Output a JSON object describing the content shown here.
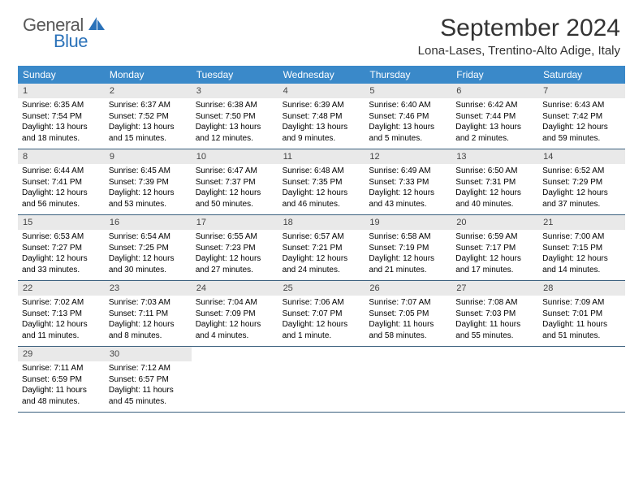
{
  "logo": {
    "top": "General",
    "bottom": "Blue"
  },
  "title": "September 2024",
  "location": "Lona-Lases, Trentino-Alto Adige, Italy",
  "colors": {
    "header_bg": "#3a89c9",
    "header_text": "#ffffff",
    "daynum_bg": "#e9e9e9",
    "week_border": "#3a5f7d",
    "logo_gray": "#585858",
    "logo_blue": "#2b72b9"
  },
  "day_headers": [
    "Sunday",
    "Monday",
    "Tuesday",
    "Wednesday",
    "Thursday",
    "Friday",
    "Saturday"
  ],
  "weeks": [
    [
      {
        "n": "1",
        "sr": "Sunrise: 6:35 AM",
        "ss": "Sunset: 7:54 PM",
        "dl": "Daylight: 13 hours and 18 minutes."
      },
      {
        "n": "2",
        "sr": "Sunrise: 6:37 AM",
        "ss": "Sunset: 7:52 PM",
        "dl": "Daylight: 13 hours and 15 minutes."
      },
      {
        "n": "3",
        "sr": "Sunrise: 6:38 AM",
        "ss": "Sunset: 7:50 PM",
        "dl": "Daylight: 13 hours and 12 minutes."
      },
      {
        "n": "4",
        "sr": "Sunrise: 6:39 AM",
        "ss": "Sunset: 7:48 PM",
        "dl": "Daylight: 13 hours and 9 minutes."
      },
      {
        "n": "5",
        "sr": "Sunrise: 6:40 AM",
        "ss": "Sunset: 7:46 PM",
        "dl": "Daylight: 13 hours and 5 minutes."
      },
      {
        "n": "6",
        "sr": "Sunrise: 6:42 AM",
        "ss": "Sunset: 7:44 PM",
        "dl": "Daylight: 13 hours and 2 minutes."
      },
      {
        "n": "7",
        "sr": "Sunrise: 6:43 AM",
        "ss": "Sunset: 7:42 PM",
        "dl": "Daylight: 12 hours and 59 minutes."
      }
    ],
    [
      {
        "n": "8",
        "sr": "Sunrise: 6:44 AM",
        "ss": "Sunset: 7:41 PM",
        "dl": "Daylight: 12 hours and 56 minutes."
      },
      {
        "n": "9",
        "sr": "Sunrise: 6:45 AM",
        "ss": "Sunset: 7:39 PM",
        "dl": "Daylight: 12 hours and 53 minutes."
      },
      {
        "n": "10",
        "sr": "Sunrise: 6:47 AM",
        "ss": "Sunset: 7:37 PM",
        "dl": "Daylight: 12 hours and 50 minutes."
      },
      {
        "n": "11",
        "sr": "Sunrise: 6:48 AM",
        "ss": "Sunset: 7:35 PM",
        "dl": "Daylight: 12 hours and 46 minutes."
      },
      {
        "n": "12",
        "sr": "Sunrise: 6:49 AM",
        "ss": "Sunset: 7:33 PM",
        "dl": "Daylight: 12 hours and 43 minutes."
      },
      {
        "n": "13",
        "sr": "Sunrise: 6:50 AM",
        "ss": "Sunset: 7:31 PM",
        "dl": "Daylight: 12 hours and 40 minutes."
      },
      {
        "n": "14",
        "sr": "Sunrise: 6:52 AM",
        "ss": "Sunset: 7:29 PM",
        "dl": "Daylight: 12 hours and 37 minutes."
      }
    ],
    [
      {
        "n": "15",
        "sr": "Sunrise: 6:53 AM",
        "ss": "Sunset: 7:27 PM",
        "dl": "Daylight: 12 hours and 33 minutes."
      },
      {
        "n": "16",
        "sr": "Sunrise: 6:54 AM",
        "ss": "Sunset: 7:25 PM",
        "dl": "Daylight: 12 hours and 30 minutes."
      },
      {
        "n": "17",
        "sr": "Sunrise: 6:55 AM",
        "ss": "Sunset: 7:23 PM",
        "dl": "Daylight: 12 hours and 27 minutes."
      },
      {
        "n": "18",
        "sr": "Sunrise: 6:57 AM",
        "ss": "Sunset: 7:21 PM",
        "dl": "Daylight: 12 hours and 24 minutes."
      },
      {
        "n": "19",
        "sr": "Sunrise: 6:58 AM",
        "ss": "Sunset: 7:19 PM",
        "dl": "Daylight: 12 hours and 21 minutes."
      },
      {
        "n": "20",
        "sr": "Sunrise: 6:59 AM",
        "ss": "Sunset: 7:17 PM",
        "dl": "Daylight: 12 hours and 17 minutes."
      },
      {
        "n": "21",
        "sr": "Sunrise: 7:00 AM",
        "ss": "Sunset: 7:15 PM",
        "dl": "Daylight: 12 hours and 14 minutes."
      }
    ],
    [
      {
        "n": "22",
        "sr": "Sunrise: 7:02 AM",
        "ss": "Sunset: 7:13 PM",
        "dl": "Daylight: 12 hours and 11 minutes."
      },
      {
        "n": "23",
        "sr": "Sunrise: 7:03 AM",
        "ss": "Sunset: 7:11 PM",
        "dl": "Daylight: 12 hours and 8 minutes."
      },
      {
        "n": "24",
        "sr": "Sunrise: 7:04 AM",
        "ss": "Sunset: 7:09 PM",
        "dl": "Daylight: 12 hours and 4 minutes."
      },
      {
        "n": "25",
        "sr": "Sunrise: 7:06 AM",
        "ss": "Sunset: 7:07 PM",
        "dl": "Daylight: 12 hours and 1 minute."
      },
      {
        "n": "26",
        "sr": "Sunrise: 7:07 AM",
        "ss": "Sunset: 7:05 PM",
        "dl": "Daylight: 11 hours and 58 minutes."
      },
      {
        "n": "27",
        "sr": "Sunrise: 7:08 AM",
        "ss": "Sunset: 7:03 PM",
        "dl": "Daylight: 11 hours and 55 minutes."
      },
      {
        "n": "28",
        "sr": "Sunrise: 7:09 AM",
        "ss": "Sunset: 7:01 PM",
        "dl": "Daylight: 11 hours and 51 minutes."
      }
    ],
    [
      {
        "n": "29",
        "sr": "Sunrise: 7:11 AM",
        "ss": "Sunset: 6:59 PM",
        "dl": "Daylight: 11 hours and 48 minutes."
      },
      {
        "n": "30",
        "sr": "Sunrise: 7:12 AM",
        "ss": "Sunset: 6:57 PM",
        "dl": "Daylight: 11 hours and 45 minutes."
      },
      null,
      null,
      null,
      null,
      null
    ]
  ]
}
